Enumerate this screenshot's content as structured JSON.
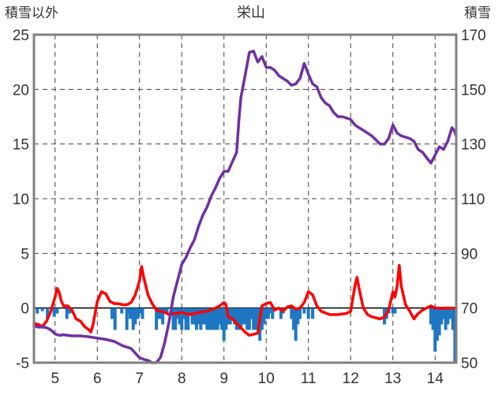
{
  "chart_data": {
    "type": "line",
    "title": "栄山",
    "ylabel_left": "積雪以外",
    "ylabel_right": "積雪",
    "xlim": [
      4.5,
      14.5
    ],
    "ylim_left": [
      -5,
      25
    ],
    "ylim_right": [
      50,
      170
    ],
    "x_ticks": [
      5,
      6,
      7,
      8,
      9,
      10,
      11,
      12,
      13,
      14
    ],
    "y_ticks_left": [
      -5,
      0,
      5,
      10,
      15,
      20,
      25
    ],
    "y_ticks_right": [
      50,
      70,
      90,
      110,
      130,
      150,
      170
    ],
    "grid": true,
    "colors": {
      "temperature": "#ff0000",
      "snow_depth": "#7030a0",
      "precipitation": "#1f77c4",
      "frame": "#808080"
    },
    "series": [
      {
        "id": "temperature",
        "axis": "left",
        "kind": "line",
        "points": [
          [
            4.5,
            -1.4
          ],
          [
            4.6,
            -1.5
          ],
          [
            4.7,
            -1.7
          ],
          [
            4.8,
            -1.2
          ],
          [
            4.9,
            -0.3
          ],
          [
            5.0,
            1.0
          ],
          [
            5.05,
            1.8
          ],
          [
            5.1,
            1.4
          ],
          [
            5.15,
            0.6
          ],
          [
            5.2,
            0.2
          ],
          [
            5.3,
            0.2
          ],
          [
            5.4,
            -0.2
          ],
          [
            5.5,
            -1.0
          ],
          [
            5.6,
            -1.2
          ],
          [
            5.7,
            -1.7
          ],
          [
            5.8,
            -2.0
          ],
          [
            5.85,
            -2.2
          ],
          [
            5.9,
            -1.5
          ],
          [
            6.0,
            0.6
          ],
          [
            6.1,
            1.5
          ],
          [
            6.2,
            1.3
          ],
          [
            6.3,
            0.6
          ],
          [
            6.4,
            0.4
          ],
          [
            6.5,
            0.4
          ],
          [
            6.6,
            0.3
          ],
          [
            6.7,
            0.3
          ],
          [
            6.8,
            0.5
          ],
          [
            6.9,
            1.2
          ],
          [
            7.0,
            2.5
          ],
          [
            7.05,
            3.8
          ],
          [
            7.1,
            2.8
          ],
          [
            7.2,
            1.2
          ],
          [
            7.3,
            0.4
          ],
          [
            7.4,
            -0.2
          ],
          [
            7.5,
            -0.3
          ],
          [
            7.6,
            -0.4
          ],
          [
            7.7,
            -0.6
          ],
          [
            7.8,
            -0.5
          ],
          [
            7.9,
            -0.5
          ],
          [
            8.0,
            -0.4
          ],
          [
            8.2,
            -0.6
          ],
          [
            8.4,
            -0.4
          ],
          [
            8.6,
            -0.3
          ],
          [
            8.8,
            0.0
          ],
          [
            8.9,
            0.2
          ],
          [
            9.0,
            0.5
          ],
          [
            9.05,
            0.3
          ],
          [
            9.1,
            -0.8
          ],
          [
            9.2,
            -1.0
          ],
          [
            9.3,
            -1.4
          ],
          [
            9.4,
            -1.8
          ],
          [
            9.5,
            -2.2
          ],
          [
            9.6,
            -2.5
          ],
          [
            9.7,
            -2.4
          ],
          [
            9.8,
            -2.3
          ],
          [
            9.85,
            -1.0
          ],
          [
            9.9,
            0.2
          ],
          [
            10.0,
            0.4
          ],
          [
            10.1,
            0.5
          ],
          [
            10.2,
            -0.2
          ],
          [
            10.3,
            0.0
          ],
          [
            10.4,
            -0.3
          ],
          [
            10.5,
            0.1
          ],
          [
            10.6,
            0.2
          ],
          [
            10.7,
            -0.1
          ],
          [
            10.8,
            0.0
          ],
          [
            10.9,
            0.5
          ],
          [
            11.0,
            1.5
          ],
          [
            11.1,
            1.2
          ],
          [
            11.2,
            0.2
          ],
          [
            11.3,
            -0.3
          ],
          [
            11.5,
            -0.6
          ],
          [
            11.7,
            -0.6
          ],
          [
            11.9,
            -0.5
          ],
          [
            12.0,
            -0.3
          ],
          [
            12.1,
            2.0
          ],
          [
            12.15,
            2.8
          ],
          [
            12.2,
            1.8
          ],
          [
            12.3,
            0.0
          ],
          [
            12.4,
            -0.6
          ],
          [
            12.5,
            -0.8
          ],
          [
            12.7,
            -1.0
          ],
          [
            12.8,
            -0.8
          ],
          [
            12.9,
            -0.2
          ],
          [
            13.0,
            1.5
          ],
          [
            13.05,
            1.0
          ],
          [
            13.1,
            2.0
          ],
          [
            13.15,
            3.9
          ],
          [
            13.2,
            2.0
          ],
          [
            13.3,
            0.3
          ],
          [
            13.4,
            -0.3
          ],
          [
            13.5,
            -1.0
          ],
          [
            13.6,
            -0.5
          ],
          [
            13.7,
            -0.2
          ],
          [
            13.8,
            0.0
          ],
          [
            13.9,
            0.2
          ],
          [
            14.0,
            0.0
          ],
          [
            14.1,
            0.0
          ],
          [
            14.3,
            0.0
          ],
          [
            14.5,
            0.0
          ]
        ]
      },
      {
        "id": "snow_depth",
        "axis": "right",
        "kind": "line",
        "points": [
          [
            4.5,
            63.5
          ],
          [
            4.6,
            63.0
          ],
          [
            4.7,
            63.0
          ],
          [
            4.8,
            62.8
          ],
          [
            4.9,
            62.0
          ],
          [
            5.0,
            60.5
          ],
          [
            5.1,
            60.0
          ],
          [
            5.2,
            60.2
          ],
          [
            5.4,
            59.8
          ],
          [
            5.6,
            59.8
          ],
          [
            5.8,
            59.5
          ],
          [
            6.0,
            59.0
          ],
          [
            6.2,
            58.5
          ],
          [
            6.4,
            57.8
          ],
          [
            6.6,
            56.2
          ],
          [
            6.8,
            55.2
          ],
          [
            6.9,
            53.5
          ],
          [
            7.0,
            51.8
          ],
          [
            7.1,
            51.2
          ],
          [
            7.2,
            50.8
          ],
          [
            7.3,
            50.0
          ],
          [
            7.4,
            50.0
          ],
          [
            7.5,
            52.0
          ],
          [
            7.6,
            57.5
          ],
          [
            7.7,
            65.0
          ],
          [
            7.8,
            74.0
          ],
          [
            7.9,
            80.0
          ],
          [
            8.0,
            86.0
          ],
          [
            8.1,
            88.5
          ],
          [
            8.2,
            92.0
          ],
          [
            8.3,
            95.0
          ],
          [
            8.4,
            100.0
          ],
          [
            8.5,
            104.0
          ],
          [
            8.6,
            107.0
          ],
          [
            8.7,
            111.0
          ],
          [
            8.8,
            114.0
          ],
          [
            8.9,
            117.5
          ],
          [
            9.0,
            120.0
          ],
          [
            9.1,
            120.0
          ],
          [
            9.2,
            123.5
          ],
          [
            9.3,
            127.0
          ],
          [
            9.35,
            138.0
          ],
          [
            9.4,
            147.0
          ],
          [
            9.5,
            155.0
          ],
          [
            9.6,
            163.5
          ],
          [
            9.7,
            164.0
          ],
          [
            9.8,
            160.0
          ],
          [
            9.9,
            162.0
          ],
          [
            10.0,
            158.0
          ],
          [
            10.1,
            158.0
          ],
          [
            10.2,
            157.0
          ],
          [
            10.3,
            155.0
          ],
          [
            10.4,
            154.0
          ],
          [
            10.5,
            153.0
          ],
          [
            10.6,
            151.5
          ],
          [
            10.7,
            152.0
          ],
          [
            10.8,
            154.0
          ],
          [
            10.9,
            159.5
          ],
          [
            11.0,
            155.5
          ],
          [
            11.1,
            152.0
          ],
          [
            11.2,
            151.0
          ],
          [
            11.3,
            147.0
          ],
          [
            11.4,
            145.0
          ],
          [
            11.5,
            144.0
          ],
          [
            11.6,
            141.5
          ],
          [
            11.7,
            140.0
          ],
          [
            11.8,
            140.0
          ],
          [
            11.9,
            139.5
          ],
          [
            12.0,
            139.0
          ],
          [
            12.1,
            137.0
          ],
          [
            12.2,
            136.0
          ],
          [
            12.3,
            135.0
          ],
          [
            12.4,
            134.0
          ],
          [
            12.5,
            133.0
          ],
          [
            12.6,
            131.5
          ],
          [
            12.7,
            130.0
          ],
          [
            12.8,
            130.0
          ],
          [
            12.9,
            132.0
          ],
          [
            13.0,
            137.0
          ],
          [
            13.1,
            134.0
          ],
          [
            13.2,
            133.0
          ],
          [
            13.3,
            132.5
          ],
          [
            13.4,
            132.0
          ],
          [
            13.5,
            131.0
          ],
          [
            13.6,
            128.0
          ],
          [
            13.7,
            127.0
          ],
          [
            13.8,
            125.0
          ],
          [
            13.9,
            123.0
          ],
          [
            14.0,
            126.0
          ],
          [
            14.1,
            129.0
          ],
          [
            14.2,
            128.0
          ],
          [
            14.3,
            131.0
          ],
          [
            14.4,
            136.0
          ],
          [
            14.45,
            135.0
          ],
          [
            14.5,
            133.0
          ]
        ]
      },
      {
        "id": "precipitation",
        "axis": "left",
        "kind": "bar",
        "bars": [
          [
            4.58,
            -0.5
          ],
          [
            4.7,
            -0.3
          ],
          [
            4.82,
            -1.0
          ],
          [
            4.98,
            -0.8
          ],
          [
            5.05,
            -0.5
          ],
          [
            5.28,
            -1.0
          ],
          [
            5.35,
            -0.5
          ],
          [
            6.35,
            -1.0
          ],
          [
            6.42,
            -2.0
          ],
          [
            6.58,
            -0.5
          ],
          [
            6.72,
            -0.5
          ],
          [
            6.7,
            -2.0
          ],
          [
            6.78,
            -1.0
          ],
          [
            6.85,
            -2.0
          ],
          [
            6.9,
            -1.5
          ],
          [
            6.96,
            -1.0
          ],
          [
            7.02,
            -0.5
          ],
          [
            7.07,
            -1.0
          ],
          [
            7.4,
            -2.0
          ],
          [
            7.45,
            -1.0
          ],
          [
            7.5,
            -1.0
          ],
          [
            7.55,
            -1.5
          ],
          [
            7.6,
            -0.5
          ],
          [
            7.65,
            -0.5
          ],
          [
            7.8,
            -2.0
          ],
          [
            7.85,
            -2.0
          ],
          [
            7.9,
            -1.0
          ],
          [
            7.95,
            -1.5
          ],
          [
            8.0,
            -2.0
          ],
          [
            8.05,
            -1.0
          ],
          [
            8.1,
            -2.0
          ],
          [
            8.15,
            -2.0
          ],
          [
            8.2,
            -0.5
          ],
          [
            8.25,
            -1.5
          ],
          [
            8.3,
            -1.5
          ],
          [
            8.35,
            -2.0
          ],
          [
            8.4,
            -1.5
          ],
          [
            8.45,
            -2.0
          ],
          [
            8.5,
            -1.5
          ],
          [
            8.55,
            -1.5
          ],
          [
            8.6,
            -2.0
          ],
          [
            8.65,
            -2.0
          ],
          [
            8.7,
            -2.0
          ],
          [
            8.75,
            -2.0
          ],
          [
            8.8,
            -2.0
          ],
          [
            8.85,
            -2.0
          ],
          [
            8.9,
            -1.5
          ],
          [
            8.95,
            -2.0
          ],
          [
            9.0,
            -3.0
          ],
          [
            9.05,
            -2.0
          ],
          [
            9.1,
            -1.5
          ],
          [
            9.15,
            -1.5
          ],
          [
            9.2,
            -1.0
          ],
          [
            9.25,
            -1.5
          ],
          [
            9.3,
            -2.0
          ],
          [
            9.35,
            -2.0
          ],
          [
            9.4,
            -2.0
          ],
          [
            9.45,
            -1.5
          ],
          [
            9.5,
            -1.5
          ],
          [
            9.55,
            -2.0
          ],
          [
            9.6,
            -2.0
          ],
          [
            9.65,
            -1.0
          ],
          [
            9.7,
            -2.0
          ],
          [
            9.75,
            -2.0
          ],
          [
            9.8,
            -2.0
          ],
          [
            9.85,
            -3.0
          ],
          [
            9.9,
            -2.0
          ],
          [
            9.95,
            -1.5
          ],
          [
            10.0,
            -1.0
          ],
          [
            10.05,
            -1.0
          ],
          [
            10.1,
            -0.5
          ],
          [
            10.15,
            -1.0
          ],
          [
            10.35,
            -1.0
          ],
          [
            10.4,
            -0.5
          ],
          [
            10.6,
            -1.0
          ],
          [
            10.65,
            -2.0
          ],
          [
            10.7,
            -3.0
          ],
          [
            10.75,
            -1.5
          ],
          [
            10.8,
            -1.0
          ],
          [
            10.9,
            -0.5
          ],
          [
            11.0,
            -1.0
          ],
          [
            11.1,
            -1.0
          ],
          [
            12.8,
            -1.5
          ],
          [
            12.85,
            -1.0
          ],
          [
            12.9,
            -0.5
          ],
          [
            13.0,
            -0.5
          ],
          [
            13.05,
            -0.5
          ],
          [
            13.9,
            -1.5
          ],
          [
            13.95,
            -2.0
          ],
          [
            14.0,
            -4.0
          ],
          [
            14.05,
            -3.0
          ],
          [
            14.1,
            -2.5
          ],
          [
            14.15,
            -1.5
          ],
          [
            14.2,
            -1.0
          ],
          [
            14.25,
            -2.0
          ],
          [
            14.3,
            -1.5
          ],
          [
            14.35,
            -1.0
          ],
          [
            14.42,
            -2.0
          ],
          [
            14.47,
            -5.0
          ]
        ]
      }
    ]
  }
}
